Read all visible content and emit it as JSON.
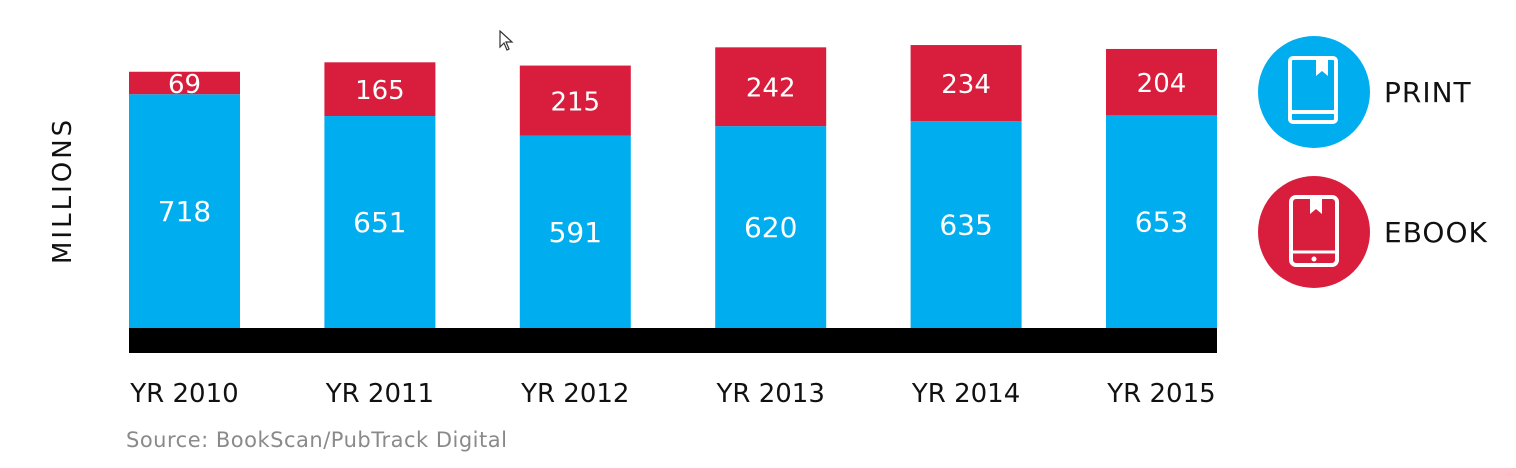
{
  "chart_data": {
    "type": "bar",
    "stacked": true,
    "categories": [
      "YR 2010",
      "YR 2011",
      "YR 2012",
      "YR 2013",
      "YR 2014",
      "YR 2015"
    ],
    "series": [
      {
        "name": "PRINT",
        "values": [
          718,
          651,
          591,
          620,
          635,
          653
        ],
        "color": "#00aeef"
      },
      {
        "name": "EBOOK",
        "values": [
          69,
          165,
          215,
          242,
          234,
          204
        ],
        "color": "#d91e3d"
      }
    ],
    "ylabel": "MILLIONS",
    "legend_position": "right",
    "grid": false,
    "baseline_color": "#000000"
  },
  "legend": {
    "print": {
      "label": "PRINT",
      "icon": "book-icon",
      "color": "#00aeef"
    },
    "ebook": {
      "label": "EBOOK",
      "icon": "tablet-icon",
      "color": "#d91e3d"
    }
  },
  "source": "Source: BookScan/PubTrack Digital"
}
